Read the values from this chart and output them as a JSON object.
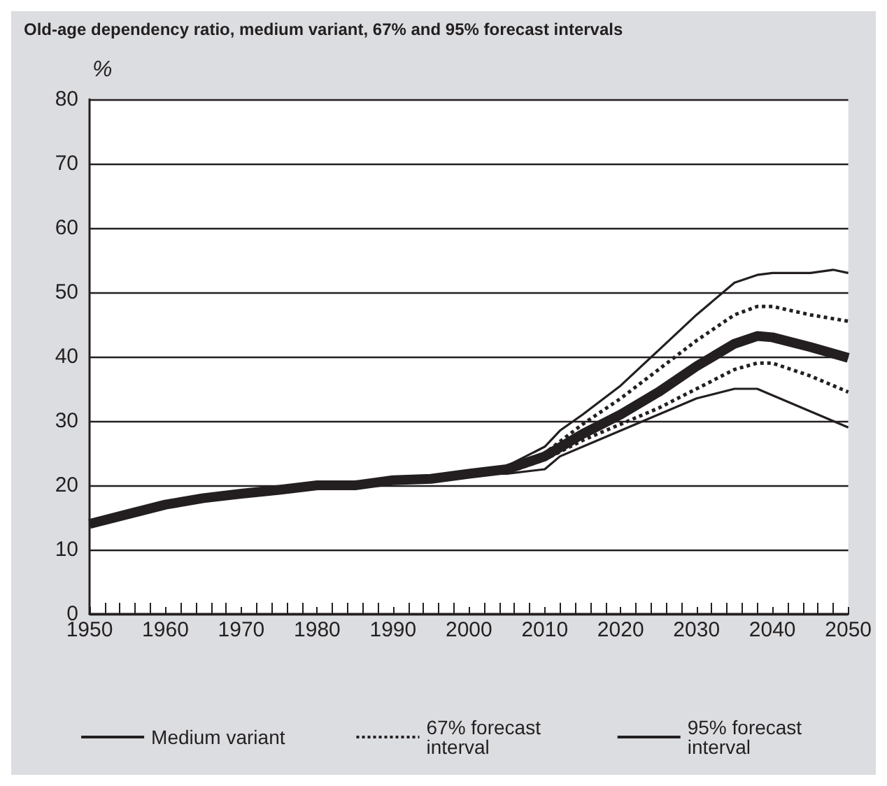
{
  "chart_data": {
    "type": "line",
    "title": "Old-age dependency ratio, medium variant, 67% and 95% forecast intervals",
    "ylabel": "%",
    "xlim": [
      1950,
      2050
    ],
    "ylim": [
      0,
      80
    ],
    "xticks": [
      1950,
      1960,
      1970,
      1980,
      1990,
      2000,
      2010,
      2020,
      2030,
      2040,
      2050
    ],
    "yticks": [
      0,
      10,
      20,
      30,
      40,
      50,
      60,
      70,
      80
    ],
    "grid": "y",
    "legend": "bottom",
    "marker": "none",
    "series": [
      {
        "name": "95% forecast interval",
        "color": "#231f20",
        "line_style": "solid",
        "x": [
          2000,
          2005,
          2010,
          2012,
          2015,
          2020,
          2025,
          2030,
          2035,
          2038,
          2040,
          2045,
          2048,
          2050
        ],
        "values": [
          21.8,
          23,
          26,
          28.5,
          31,
          35.5,
          41,
          46.5,
          51.5,
          52.7,
          53,
          53,
          53.5,
          53
        ]
      },
      {
        "name": "67% forecast interval",
        "color": "#231f20",
        "line_style": "dotted",
        "x": [
          2000,
          2005,
          2010,
          2015,
          2020,
          2025,
          2030,
          2035,
          2038,
          2040,
          2045,
          2050
        ],
        "values": [
          21.8,
          22.8,
          25,
          29.5,
          33.5,
          38,
          42.5,
          46.5,
          47.8,
          47.8,
          46.5,
          45.5
        ]
      },
      {
        "name": "Medium variant",
        "color": "#231f20",
        "line_style": "solid",
        "x": [
          1950,
          1955,
          1960,
          1965,
          1970,
          1975,
          1980,
          1985,
          1990,
          1995,
          2000,
          2005,
          2010,
          2015,
          2020,
          2025,
          2030,
          2035,
          2038,
          2040,
          2045,
          2050
        ],
        "values": [
          14,
          15.5,
          17,
          18,
          18.7,
          19.3,
          20,
          20,
          20.8,
          21,
          21.8,
          22.5,
          24.5,
          28,
          31,
          34.5,
          38.5,
          42,
          43.2,
          43,
          41.5,
          39.8
        ]
      },
      {
        "color": "#231f20",
        "line_style": "dotted",
        "x": [
          2000,
          2005,
          2010,
          2015,
          2020,
          2025,
          2030,
          2035,
          2038,
          2040,
          2045,
          2050
        ],
        "values": [
          21.8,
          22,
          24,
          27,
          29.5,
          32,
          35,
          38,
          39,
          39,
          37,
          34.5
        ]
      },
      {
        "color": "#231f20",
        "line_style": "solid",
        "x": [
          2000,
          2005,
          2010,
          2012,
          2015,
          2020,
          2025,
          2030,
          2035,
          2038,
          2040,
          2045,
          2050
        ],
        "values": [
          21.8,
          21.8,
          22.5,
          24.5,
          26,
          28.5,
          31,
          33.5,
          35,
          35,
          34,
          31.5,
          29
        ]
      }
    ]
  }
}
